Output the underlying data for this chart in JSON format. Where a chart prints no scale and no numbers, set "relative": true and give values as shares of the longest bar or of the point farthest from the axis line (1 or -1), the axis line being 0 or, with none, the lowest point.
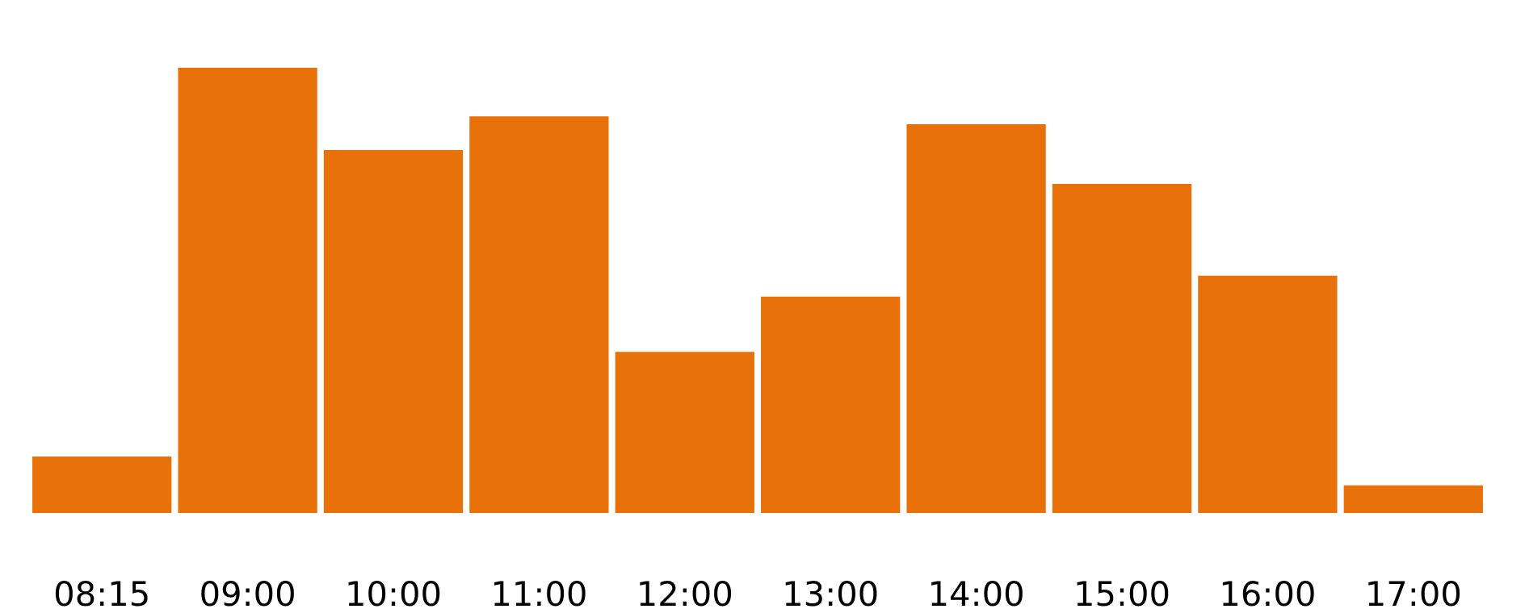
{
  "chart_data": {
    "type": "bar",
    "relative": true,
    "categories": [
      "08:15",
      "09:00",
      "10:00",
      "11:00",
      "12:00",
      "13:00",
      "14:00",
      "15:00",
      "16:00",
      "17:00"
    ],
    "values": [
      0.127,
      1,
      0.815,
      0.891,
      0.362,
      0.486,
      0.873,
      0.739,
      0.533,
      0.062
    ],
    "color": "#e8710a",
    "grid": false,
    "legend": false
  }
}
